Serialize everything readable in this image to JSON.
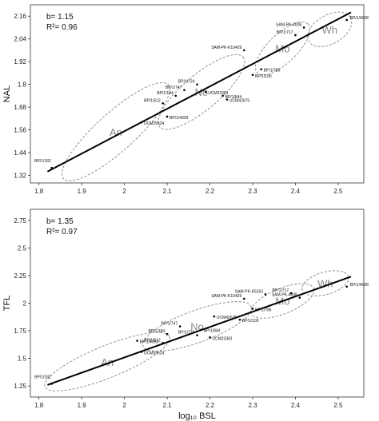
{
  "chart_data": [
    {
      "type": "scatter",
      "ylabel": "NAL",
      "xlabel": "",
      "stats": {
        "b": "b= 1.15",
        "r2": "R²= 0.96"
      },
      "xlim": [
        1.78,
        2.56
      ],
      "ylim": [
        1.28,
        2.22
      ],
      "xticks": [
        "1.8",
        "1.9",
        "2",
        "2.1",
        "2.2",
        "2.3",
        "2.4",
        "2.5"
      ],
      "yticks": [
        "1.32",
        "1.44",
        "1.56",
        "1.68",
        "1.8",
        "1.92",
        "2.04",
        "2.16"
      ],
      "fit_line": {
        "x": [
          1.82,
          2.53
        ],
        "y": [
          1.34,
          2.18
        ]
      },
      "points": [
        {
          "label": "BP/1/182",
          "x": 1.83,
          "y": 1.36
        },
        {
          "label": "UCM39524",
          "x": 2.04,
          "y": 1.6
        },
        {
          "label": "BP/1/4093",
          "x": 2.1,
          "y": 1.63
        },
        {
          "label": "BP/1/512",
          "x": 2.09,
          "y": 1.7
        },
        {
          "label": "BP/1/184",
          "x": 2.12,
          "y": 1.74
        },
        {
          "label": "BP/1/747",
          "x": 2.14,
          "y": 1.77
        },
        {
          "label": "BP/1/724",
          "x": 2.17,
          "y": 1.8
        },
        {
          "label": "UCM23381",
          "x": 2.19,
          "y": 1.76
        },
        {
          "label": "BP/1/844",
          "x": 2.23,
          "y": 1.74
        },
        {
          "label": "UCM42675",
          "x": 2.24,
          "y": 1.72
        },
        {
          "label": "BP/1/100",
          "x": 2.3,
          "y": 1.85
        },
        {
          "label": "BP/1/785",
          "x": 2.32,
          "y": 1.88
        },
        {
          "label": "SAM-PK-K10429",
          "x": 2.28,
          "y": 1.98
        },
        {
          "label": "BP/1/717",
          "x": 2.4,
          "y": 2.06
        },
        {
          "label": "SAM-PK-4008",
          "x": 2.42,
          "y": 2.1
        },
        {
          "label": "BP/1/4008",
          "x": 2.52,
          "y": 2.14
        }
      ],
      "groups": [
        {
          "label": "An",
          "cx": 1.98,
          "cy": 1.55,
          "rx_deg": 1
        },
        {
          "label": "No",
          "cx": 2.18,
          "cy": 1.76,
          "rx_deg": 1
        },
        {
          "label": "Mo",
          "cx": 2.37,
          "cy": 1.99,
          "rx_deg": 1
        },
        {
          "label": "Wh",
          "cx": 2.48,
          "cy": 2.09,
          "rx_deg": 1
        }
      ]
    },
    {
      "type": "scatter",
      "ylabel": "TFL",
      "xlabel": "log₁₀ BSL",
      "stats": {
        "b": "b= 1.35",
        "r2": "R²= 0.97"
      },
      "xlim": [
        1.78,
        2.56
      ],
      "ylim": [
        1.15,
        2.85
      ],
      "xticks": [
        "1.8",
        "1.9",
        "2",
        "2.1",
        "2.2",
        "2.3",
        "2.4",
        "2.5"
      ],
      "yticks": [
        "1.25",
        "1.5",
        "1.75",
        "2",
        "2.25",
        "2.5",
        "2.75"
      ],
      "fit_line": {
        "x": [
          1.82,
          2.53
        ],
        "y": [
          1.26,
          2.24
        ]
      },
      "points": [
        {
          "label": "BP/1/182",
          "x": 1.83,
          "y": 1.27
        },
        {
          "label": "UCM39524",
          "x": 2.04,
          "y": 1.56
        },
        {
          "label": "BP/1/4093",
          "x": 2.03,
          "y": 1.66
        },
        {
          "label": "BP/1/512",
          "x": 2.09,
          "y": 1.64
        },
        {
          "label": "BP/1/184",
          "x": 2.1,
          "y": 1.72
        },
        {
          "label": "BP/1/747",
          "x": 2.13,
          "y": 1.79
        },
        {
          "label": "BP/1/724",
          "x": 2.17,
          "y": 1.71
        },
        {
          "label": "UCM23381",
          "x": 2.2,
          "y": 1.69
        },
        {
          "label": "BP/1/844",
          "x": 2.18,
          "y": 1.76
        },
        {
          "label": "UCM42675",
          "x": 2.21,
          "y": 1.88
        },
        {
          "label": "BP/1/100",
          "x": 2.27,
          "y": 1.85
        },
        {
          "label": "BP/1/785",
          "x": 2.3,
          "y": 1.95
        },
        {
          "label": "SAM-PK-K10429",
          "x": 2.28,
          "y": 2.04
        },
        {
          "label": "SAM-PK-K5263",
          "x": 2.33,
          "y": 2.08
        },
        {
          "label": "BP/1/717",
          "x": 2.39,
          "y": 2.09
        },
        {
          "label": "SAM-PK-4008",
          "x": 2.41,
          "y": 2.05
        },
        {
          "label": "BP/1/4008",
          "x": 2.52,
          "y": 2.15
        }
      ],
      "groups": [
        {
          "label": "An",
          "cx": 1.96,
          "cy": 1.47,
          "rx_deg": 1
        },
        {
          "label": "No",
          "cx": 2.17,
          "cy": 1.79,
          "rx_deg": 1
        },
        {
          "label": "Mo",
          "cx": 2.37,
          "cy": 2.02,
          "rx_deg": 1
        },
        {
          "label": "Wh",
          "cx": 2.47,
          "cy": 2.18,
          "rx_deg": 1
        }
      ]
    }
  ]
}
